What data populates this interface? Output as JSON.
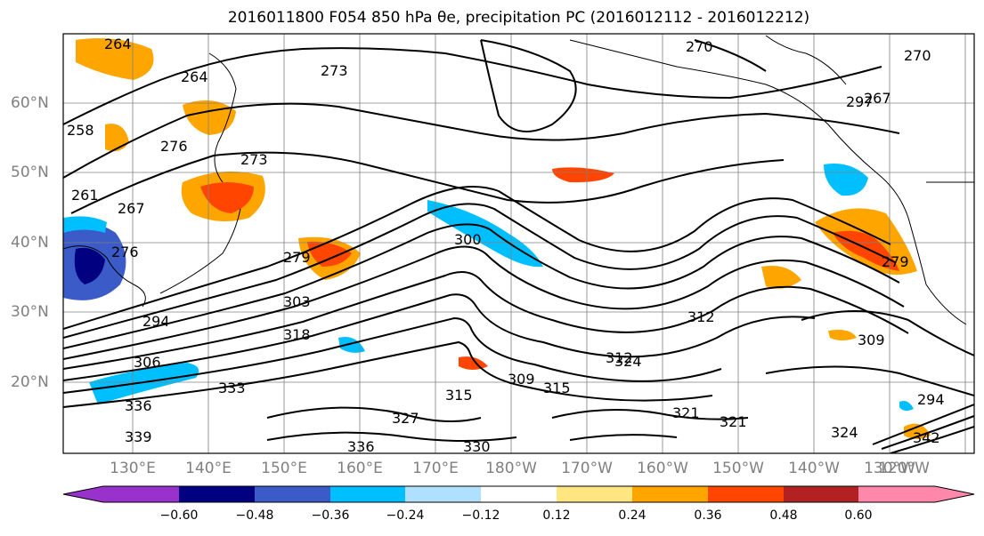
{
  "title": "2016011800 F054 850 hPa θe, precipitation PC (2016012112 - 2016012212)",
  "map": {
    "lat_labels": [
      "60°N",
      "50°N",
      "40°N",
      "30°N",
      "20°N"
    ],
    "lon_labels": [
      "130°E",
      "140°E",
      "150°E",
      "160°E",
      "170°E",
      "180°W",
      "170°W",
      "160°W",
      "150°W",
      "140°W",
      "130°W",
      "120°W"
    ],
    "contour_labels": [
      "264",
      "270",
      "273",
      "264",
      "258",
      "261",
      "267",
      "273",
      "276",
      "279",
      "276",
      "300",
      "297",
      "303",
      "294",
      "318",
      "306",
      "312",
      "315",
      "309",
      "312",
      "324",
      "315",
      "321",
      "321",
      "333",
      "336",
      "330",
      "336",
      "339",
      "327",
      "324",
      "342",
      "309",
      "267",
      "279",
      "294",
      "270"
    ]
  },
  "colorbar": {
    "tick_labels": [
      "−0.60",
      "−0.48",
      "−0.36",
      "−0.24",
      "−0.12",
      "0.12",
      "0.24",
      "0.36",
      "0.48",
      "0.60"
    ],
    "colors": [
      "#9932cc",
      "#000080",
      "#3b5bc8",
      "#00bfff",
      "#b0e0ff",
      "#ffffff",
      "#ffe680",
      "#ffa500",
      "#ff4500",
      "#b22222",
      "#ff88aa"
    ]
  }
}
